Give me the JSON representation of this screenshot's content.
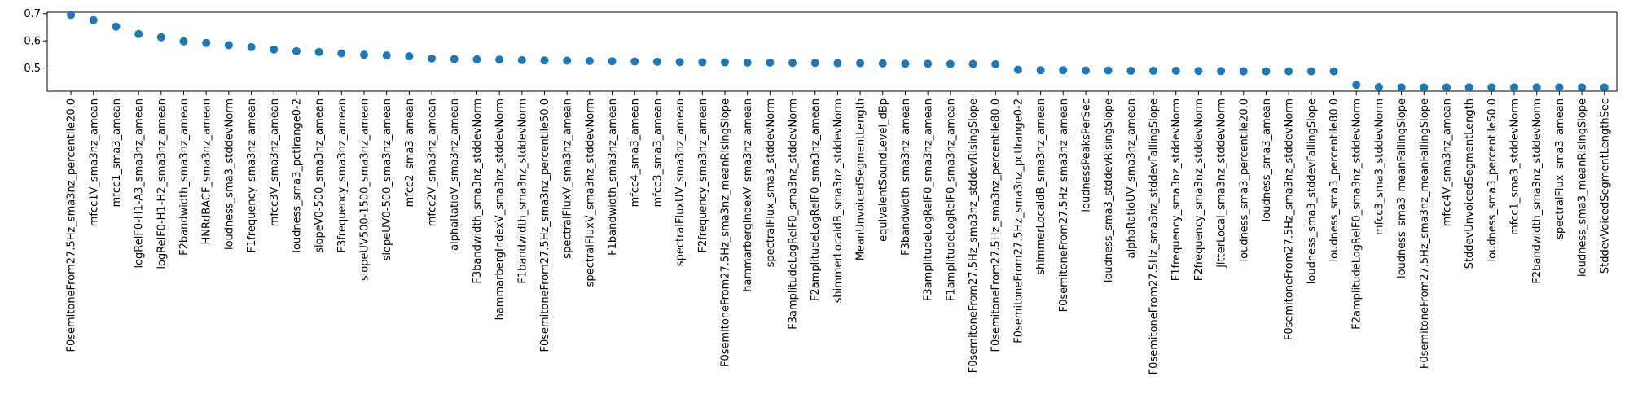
{
  "chart_data": {
    "type": "scatter",
    "title": "",
    "xlabel": "",
    "ylabel": "",
    "ylim": [
      0.415,
      0.705
    ],
    "yticks": [
      0.5,
      0.6,
      0.7
    ],
    "ytick_labels": [
      "0.5",
      "0.6",
      "0.7"
    ],
    "grid": false,
    "marker_color": "#1f77b4",
    "categories": [
      "F0semitoneFrom27.5Hz_sma3nz_percentile20.0",
      "mfcc1V_sma3nz_amean",
      "mfcc1_sma3_amean",
      "logRelF0-H1-A3_sma3nz_amean",
      "logRelF0-H1-H2_sma3nz_amean",
      "F2bandwidth_sma3nz_amean",
      "HNRdBACF_sma3nz_amean",
      "loudness_sma3_stddevNorm",
      "F1frequency_sma3nz_amean",
      "mfcc3V_sma3nz_amean",
      "loudness_sma3_pctlrange0-2",
      "slopeV0-500_sma3nz_amean",
      "F3frequency_sma3nz_amean",
      "slopeUV500-1500_sma3nz_amean",
      "slopeUV0-500_sma3nz_amean",
      "mfcc2_sma3_amean",
      "mfcc2V_sma3nz_amean",
      "alphaRatioV_sma3nz_amean",
      "F3bandwidth_sma3nz_stddevNorm",
      "hammarbergIndexV_sma3nz_stddevNorm",
      "F1bandwidth_sma3nz_stddevNorm",
      "F0semitoneFrom27.5Hz_sma3nz_percentile50.0",
      "spectralFluxV_sma3nz_amean",
      "spectralFluxV_sma3nz_stddevNorm",
      "F1bandwidth_sma3nz_amean",
      "mfcc4_sma3_amean",
      "mfcc3_sma3_amean",
      "spectralFluxUV_sma3nz_amean",
      "F2frequency_sma3nz_amean",
      "F0semitoneFrom27.5Hz_sma3nz_meanRisingSlope",
      "hammarbergIndexV_sma3nz_amean",
      "spectralFlux_sma3_stddevNorm",
      "F3amplitudeLogRelF0_sma3nz_stddevNorm",
      "F2amplitudeLogRelF0_sma3nz_amean",
      "shimmerLocaldB_sma3nz_stddevNorm",
      "MeanUnvoicedSegmentLength",
      "equivalentSoundLevel_dBp",
      "F3bandwidth_sma3nz_amean",
      "F3amplitudeLogRelF0_sma3nz_amean",
      "F1amplitudeLogRelF0_sma3nz_amean",
      "F0semitoneFrom27.5Hz_sma3nz_stddevRisingSlope",
      "F0semitoneFrom27.5Hz_sma3nz_percentile80.0",
      "F0semitoneFrom27.5Hz_sma3nz_pctlrange0-2",
      "shimmerLocaldB_sma3nz_amean",
      "F0semitoneFrom27.5Hz_sma3nz_amean",
      "loudnessPeaksPerSec",
      "loudness_sma3_stddevRisingSlope",
      "alphaRatioUV_sma3nz_amean",
      "F0semitoneFrom27.5Hz_sma3nz_stddevFallingSlope",
      "F1frequency_sma3nz_stddevNorm",
      "F2frequency_sma3nz_stddevNorm",
      "jitterLocal_sma3nz_stddevNorm",
      "loudness_sma3_percentile20.0",
      "loudness_sma3_amean",
      "F0semitoneFrom27.5Hz_sma3nz_stddevNorm",
      "loudness_sma3_stddevFallingSlope",
      "loudness_sma3_percentile80.0",
      "F2amplitudeLogRelF0_sma3nz_stddevNorm",
      "mfcc3_sma3_stddevNorm",
      "loudness_sma3_meanFallingSlope",
      "F0semitoneFrom27.5Hz_sma3nz_meanFallingSlope",
      "mfcc4V_sma3nz_amean",
      "StddevUnvoicedSegmentLength",
      "loudness_sma3_percentile50.0",
      "mfcc1_sma3_stddevNorm",
      "F2bandwidth_sma3nz_stddevNorm",
      "spectralFlux_sma3_amean",
      "loudness_sma3_meanRisingSlope",
      "StddevVoicedSegmentLengthSec"
    ],
    "values": [
      0.695,
      0.676,
      0.652,
      0.625,
      0.613,
      0.598,
      0.592,
      0.584,
      0.577,
      0.568,
      0.562,
      0.559,
      0.554,
      0.549,
      0.546,
      0.543,
      0.535,
      0.533,
      0.532,
      0.531,
      0.529,
      0.528,
      0.527,
      0.526,
      0.525,
      0.524,
      0.523,
      0.522,
      0.521,
      0.521,
      0.52,
      0.52,
      0.519,
      0.519,
      0.518,
      0.518,
      0.517,
      0.516,
      0.516,
      0.515,
      0.515,
      0.514,
      0.494,
      0.492,
      0.492,
      0.491,
      0.491,
      0.49,
      0.49,
      0.49,
      0.489,
      0.489,
      0.488,
      0.488,
      0.488,
      0.488,
      0.488,
      0.438,
      0.43,
      0.429,
      0.429,
      0.429,
      0.429,
      0.429,
      0.429,
      0.429,
      0.429,
      0.429,
      0.429
    ]
  }
}
